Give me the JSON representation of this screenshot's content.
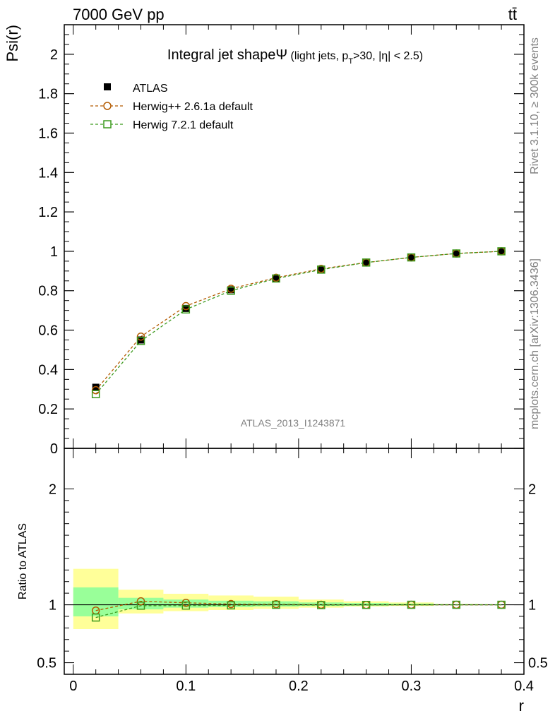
{
  "header": {
    "energy_label": "7000 GeV pp",
    "process_label": "tt̄"
  },
  "side_labels": {
    "rivet": "Rivet 3.1.10, ≥ 300k events",
    "mcplots": "mcplots.cern.ch [arXiv:1306.3436]"
  },
  "plot_title": {
    "main": "Integral jet shape",
    "symbol": "Ψ",
    "sub_a": " (light jets, p",
    "sub_sub": "T",
    "sub_b": ">30, |η| < 2.5)"
  },
  "analysis_id": "ATLAS_2013_I1243871",
  "colors": {
    "atlas": "#000000",
    "herwigpp": "#b35a00",
    "herwig7": "#3c9a1e",
    "band_inner": "#99ff99",
    "band_outer": "#ffff99"
  },
  "chart_data": [
    {
      "type": "line",
      "panel": "main",
      "ylabel": "Psi(r)",
      "xlim": [
        -0.008,
        0.4
      ],
      "ylim": [
        0,
        2.15
      ],
      "yticks": [
        0,
        0.2,
        0.4,
        0.6,
        0.8,
        1,
        1.2,
        1.4,
        1.6,
        1.8,
        2
      ],
      "ytick_labels": [
        "0",
        "0.2",
        "0.4",
        "0.6",
        "0.8",
        "1",
        "1.2",
        "1.4",
        "1.6",
        "1.8",
        "2"
      ],
      "x": [
        0.02,
        0.06,
        0.1,
        0.14,
        0.18,
        0.22,
        0.26,
        0.3,
        0.34,
        0.38
      ],
      "legend_position": "top-left",
      "series": [
        {
          "name": "ATLAS",
          "marker": "filled-square",
          "values": [
            0.31,
            0.55,
            0.71,
            0.805,
            0.862,
            0.91,
            0.944,
            0.969,
            0.989,
            1.0
          ]
        },
        {
          "name": "Herwig++ 2.6.1a default",
          "marker": "open-circle",
          "values": [
            0.295,
            0.567,
            0.722,
            0.81,
            0.866,
            0.911,
            0.943,
            0.969,
            0.989,
            1.0
          ]
        },
        {
          "name": "Herwig 7.2.1 default",
          "marker": "open-square",
          "values": [
            0.275,
            0.545,
            0.705,
            0.8,
            0.862,
            0.907,
            0.943,
            0.969,
            0.989,
            1.0
          ]
        }
      ]
    },
    {
      "type": "line",
      "panel": "ratio",
      "ylabel": "Ratio to ATLAS",
      "xlabel": "r",
      "xlim": [
        -0.008,
        0.4
      ],
      "ylim": [
        0.4,
        2.35
      ],
      "yticks": [
        0.5,
        1,
        2
      ],
      "ytick_labels": [
        "0.5",
        "1",
        "2"
      ],
      "xticks": [
        0,
        0.1,
        0.2,
        0.3,
        0.4
      ],
      "xtick_labels": [
        "0",
        "0.1",
        "0.2",
        "0.3",
        "0.4"
      ],
      "x": [
        0.02,
        0.06,
        0.1,
        0.14,
        0.18,
        0.22,
        0.26,
        0.3,
        0.34,
        0.38
      ],
      "bin_edges": [
        0.0,
        0.04,
        0.08,
        0.12,
        0.16,
        0.2,
        0.24,
        0.28,
        0.32,
        0.36,
        0.4
      ],
      "band_inner": [
        [
          0.9,
          1.15
        ],
        [
          0.96,
          1.06
        ],
        [
          0.975,
          1.045
        ],
        [
          0.98,
          1.035
        ],
        [
          0.985,
          1.03
        ],
        [
          0.99,
          1.02
        ],
        [
          0.992,
          1.015
        ],
        [
          0.995,
          1.01
        ],
        [
          0.998,
          1.004
        ],
        [
          0.999,
          1.002
        ]
      ],
      "band_outer": [
        [
          0.79,
          1.31
        ],
        [
          0.925,
          1.13
        ],
        [
          0.945,
          1.095
        ],
        [
          0.955,
          1.08
        ],
        [
          0.965,
          1.07
        ],
        [
          0.975,
          1.045
        ],
        [
          0.985,
          1.03
        ],
        [
          0.99,
          1.02
        ],
        [
          0.996,
          1.006
        ],
        [
          0.998,
          1.003
        ]
      ],
      "series": [
        {
          "name": "Herwig++ 2.6.1a default",
          "values": [
            0.95,
            1.03,
            1.017,
            1.006,
            1.005,
            1.0,
            0.999,
            1.0,
            1.0,
            1.0
          ]
        },
        {
          "name": "Herwig 7.2.1 default",
          "values": [
            0.89,
            0.992,
            0.993,
            0.995,
            1.0,
            0.997,
            0.999,
            1.0,
            1.0,
            1.0
          ]
        }
      ]
    }
  ]
}
